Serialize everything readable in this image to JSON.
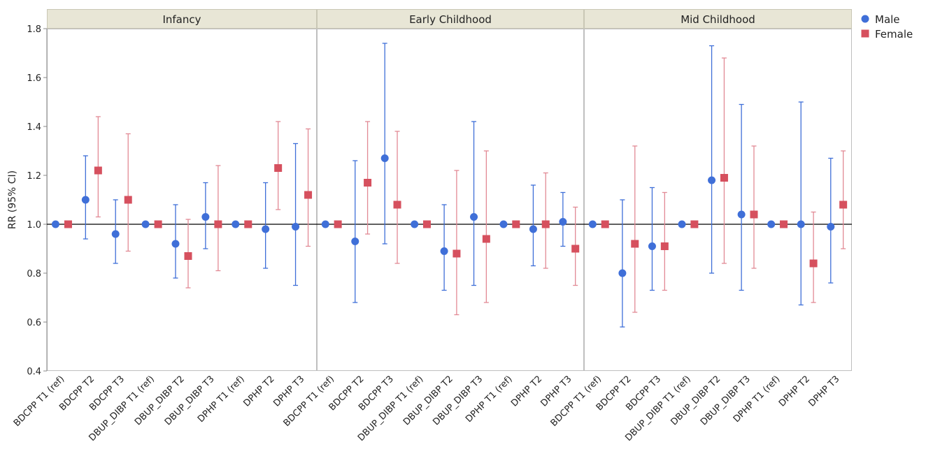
{
  "colors": {
    "male": "#3F6FD8",
    "female": "#D6505E",
    "female_bar": "#E28A95",
    "strip_bg": "#E8E6D6",
    "strip_border": "#C9C7B5",
    "panel_border": "#BFBFBF",
    "reference_line": "#000000"
  },
  "chart_data": {
    "type": "scatter",
    "subtype": "forest-plot-with-error-bars",
    "ylabel": "RR (95% CI)",
    "ylim": [
      0.4,
      1.8
    ],
    "yticks": [
      "0.4",
      "0.6",
      "0.8",
      "1.0",
      "1.2",
      "1.4",
      "1.6",
      "1.8"
    ],
    "reference_value": 1.0,
    "legend": {
      "position": "top-right",
      "entries": [
        {
          "key": "male",
          "label": "Male",
          "marker": "circle"
        },
        {
          "key": "female",
          "label": "Female",
          "marker": "square"
        }
      ]
    },
    "categories": [
      "BDCPP T1 (ref)",
      "BDCPP T2",
      "BDCPP T3",
      "DBUP_DIBP T1 (ref)",
      "DBUP_DIBP T2",
      "DBUP_DIBP T3",
      "DPHP T1 (ref)",
      "DPHP T2",
      "DPHP T3"
    ],
    "panels": [
      {
        "title": "Infancy",
        "male": [
          {
            "est": 1.0,
            "lo": null,
            "hi": null
          },
          {
            "est": 1.1,
            "lo": 0.94,
            "hi": 1.28
          },
          {
            "est": 0.96,
            "lo": 0.84,
            "hi": 1.1
          },
          {
            "est": 1.0,
            "lo": null,
            "hi": null
          },
          {
            "est": 0.92,
            "lo": 0.78,
            "hi": 1.08
          },
          {
            "est": 1.03,
            "lo": 0.9,
            "hi": 1.17
          },
          {
            "est": 1.0,
            "lo": null,
            "hi": null
          },
          {
            "est": 0.98,
            "lo": 0.82,
            "hi": 1.17
          },
          {
            "est": 0.99,
            "lo": 0.75,
            "hi": 1.33
          }
        ],
        "female": [
          {
            "est": 1.0,
            "lo": null,
            "hi": null
          },
          {
            "est": 1.22,
            "lo": 1.03,
            "hi": 1.44
          },
          {
            "est": 1.1,
            "lo": 0.89,
            "hi": 1.37
          },
          {
            "est": 1.0,
            "lo": null,
            "hi": null
          },
          {
            "est": 0.87,
            "lo": 0.74,
            "hi": 1.02
          },
          {
            "est": 1.0,
            "lo": 0.81,
            "hi": 1.24
          },
          {
            "est": 1.0,
            "lo": null,
            "hi": null
          },
          {
            "est": 1.23,
            "lo": 1.06,
            "hi": 1.42
          },
          {
            "est": 1.12,
            "lo": 0.91,
            "hi": 1.39
          }
        ]
      },
      {
        "title": "Early Childhood",
        "male": [
          {
            "est": 1.0,
            "lo": null,
            "hi": null
          },
          {
            "est": 0.93,
            "lo": 0.68,
            "hi": 1.26
          },
          {
            "est": 1.27,
            "lo": 0.92,
            "hi": 1.74
          },
          {
            "est": 1.0,
            "lo": null,
            "hi": null
          },
          {
            "est": 0.89,
            "lo": 0.73,
            "hi": 1.08
          },
          {
            "est": 1.03,
            "lo": 0.75,
            "hi": 1.42
          },
          {
            "est": 1.0,
            "lo": null,
            "hi": null
          },
          {
            "est": 0.98,
            "lo": 0.83,
            "hi": 1.16
          },
          {
            "est": 1.01,
            "lo": 0.91,
            "hi": 1.13
          }
        ],
        "female": [
          {
            "est": 1.0,
            "lo": null,
            "hi": null
          },
          {
            "est": 1.17,
            "lo": 0.96,
            "hi": 1.42
          },
          {
            "est": 1.08,
            "lo": 0.84,
            "hi": 1.38
          },
          {
            "est": 1.0,
            "lo": null,
            "hi": null
          },
          {
            "est": 0.88,
            "lo": 0.63,
            "hi": 1.22
          },
          {
            "est": 0.94,
            "lo": 0.68,
            "hi": 1.3
          },
          {
            "est": 1.0,
            "lo": null,
            "hi": null
          },
          {
            "est": 1.0,
            "lo": 0.82,
            "hi": 1.21
          },
          {
            "est": 0.9,
            "lo": 0.75,
            "hi": 1.07
          }
        ]
      },
      {
        "title": "Mid Childhood",
        "male": [
          {
            "est": 1.0,
            "lo": null,
            "hi": null
          },
          {
            "est": 0.8,
            "lo": 0.58,
            "hi": 1.1
          },
          {
            "est": 0.91,
            "lo": 0.73,
            "hi": 1.15
          },
          {
            "est": 1.0,
            "lo": null,
            "hi": null
          },
          {
            "est": 1.18,
            "lo": 0.8,
            "hi": 1.73
          },
          {
            "est": 1.04,
            "lo": 0.73,
            "hi": 1.49
          },
          {
            "est": 1.0,
            "lo": null,
            "hi": null
          },
          {
            "est": 1.0,
            "lo": 0.67,
            "hi": 1.5
          },
          {
            "est": 0.99,
            "lo": 0.76,
            "hi": 1.27
          }
        ],
        "female": [
          {
            "est": 1.0,
            "lo": null,
            "hi": null
          },
          {
            "est": 0.92,
            "lo": 0.64,
            "hi": 1.32
          },
          {
            "est": 0.91,
            "lo": 0.73,
            "hi": 1.13
          },
          {
            "est": 1.0,
            "lo": null,
            "hi": null
          },
          {
            "est": 1.19,
            "lo": 0.84,
            "hi": 1.68
          },
          {
            "est": 1.04,
            "lo": 0.82,
            "hi": 1.32
          },
          {
            "est": 1.0,
            "lo": null,
            "hi": null
          },
          {
            "est": 0.84,
            "lo": 0.68,
            "hi": 1.05
          },
          {
            "est": 1.08,
            "lo": 0.9,
            "hi": 1.3
          }
        ]
      }
    ]
  }
}
